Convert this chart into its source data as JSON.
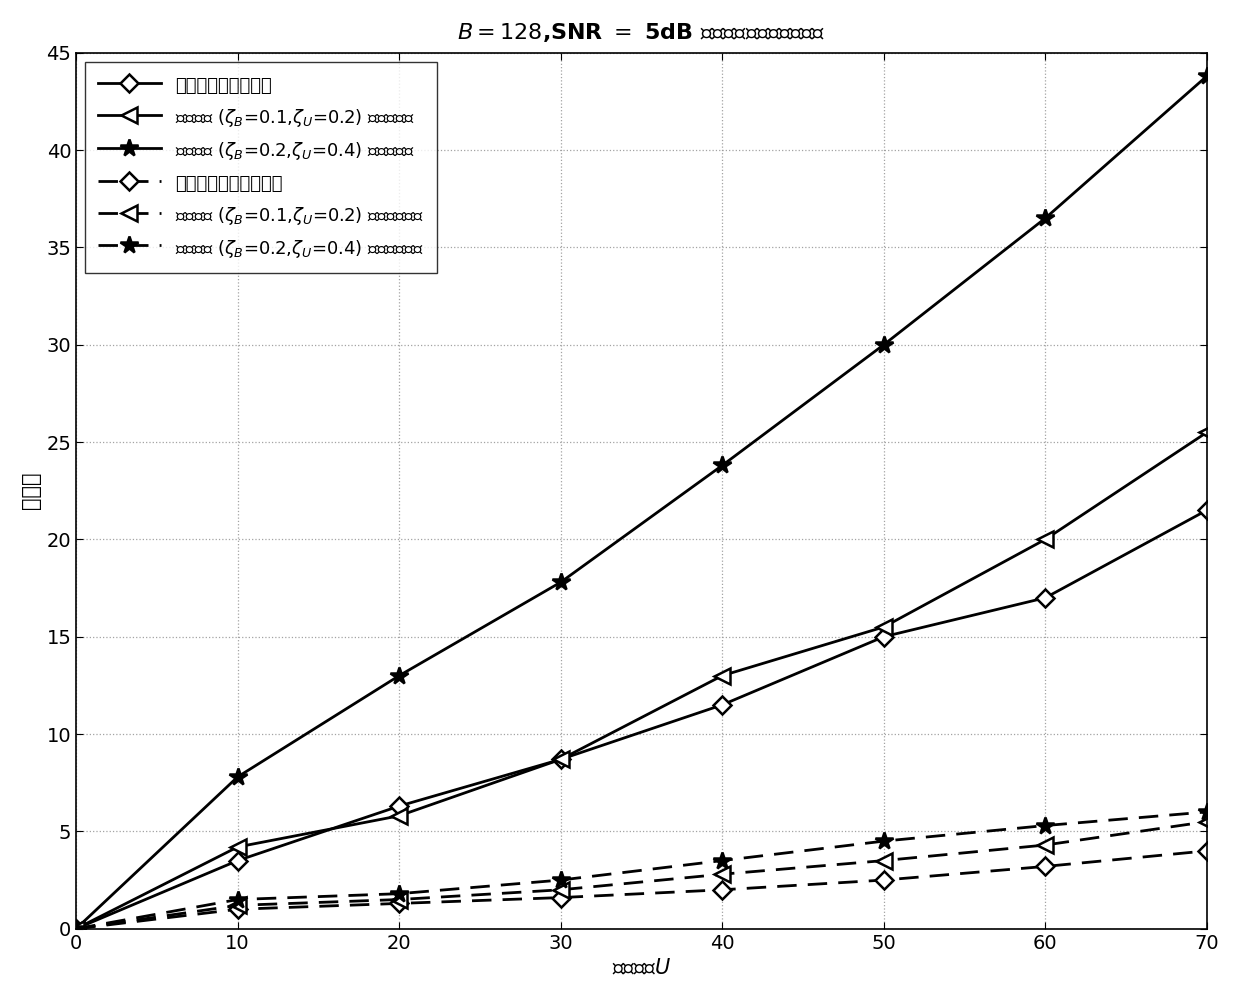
{
  "title": "$B = 128$,SNR $=$ 5dB 时检测矩阵的条件数变化",
  "xlabel": "用户数，$U$",
  "ylabel": "条件数",
  "x": [
    0,
    10,
    20,
    30,
    40,
    50,
    60,
    70
  ],
  "series": [
    {
      "label": "理想信道矩阵未处理",
      "y": [
        0,
        3.5,
        6.3,
        8.7,
        11.5,
        15.0,
        17.0,
        21.5
      ],
      "marker": "D",
      "color": "black",
      "linewidth": 2.0,
      "markersize": 9,
      "dashed": false
    },
    {
      "label": "相关信道 ($\\zeta_B$=0.1,$\\zeta_U$=0.2) 矩阵未处理",
      "y": [
        0,
        4.2,
        5.8,
        8.7,
        13.0,
        15.5,
        20.0,
        25.5
      ],
      "marker": "<",
      "color": "black",
      "linewidth": 2.0,
      "markersize": 11,
      "dashed": false
    },
    {
      "label": "相关信道 ($\\zeta_B$=0.2,$\\zeta_U$=0.4) 矩阵未处理",
      "y": [
        0,
        7.8,
        13.0,
        17.8,
        23.8,
        30.0,
        36.5,
        43.8
      ],
      "marker": "*",
      "color": "black",
      "linewidth": 2.0,
      "markersize": 13,
      "dashed": false
    },
    {
      "label": "理想信道矩阵预处理后",
      "y": [
        0,
        1.0,
        1.3,
        1.6,
        2.0,
        2.5,
        3.2,
        4.0
      ],
      "marker": "D",
      "color": "black",
      "linewidth": 2.0,
      "markersize": 9,
      "dashed": true
    },
    {
      "label": "相关信道 ($\\zeta_B$=0.1,$\\zeta_U$=0.2) 矩阵预处理后",
      "y": [
        0,
        1.2,
        1.5,
        2.0,
        2.8,
        3.5,
        4.3,
        5.5
      ],
      "marker": "<",
      "color": "black",
      "linewidth": 2.0,
      "markersize": 11,
      "dashed": true
    },
    {
      "label": "相关信道 ($\\zeta_B$=0.2,$\\zeta_U$=0.4) 矩阵预处理后",
      "y": [
        0,
        1.5,
        1.8,
        2.5,
        3.5,
        4.5,
        5.3,
        6.0
      ],
      "marker": "*",
      "color": "black",
      "linewidth": 2.0,
      "markersize": 13,
      "dashed": true
    }
  ],
  "xlim": [
    0,
    70
  ],
  "ylim": [
    0,
    45
  ],
  "xticks": [
    0,
    10,
    20,
    30,
    40,
    50,
    60,
    70
  ],
  "yticks": [
    0,
    5,
    10,
    15,
    20,
    25,
    30,
    35,
    40,
    45
  ],
  "grid_color": "#999999",
  "background_color": "#ffffff",
  "title_fontsize": 16,
  "label_fontsize": 15,
  "tick_fontsize": 14,
  "legend_fontsize": 13
}
